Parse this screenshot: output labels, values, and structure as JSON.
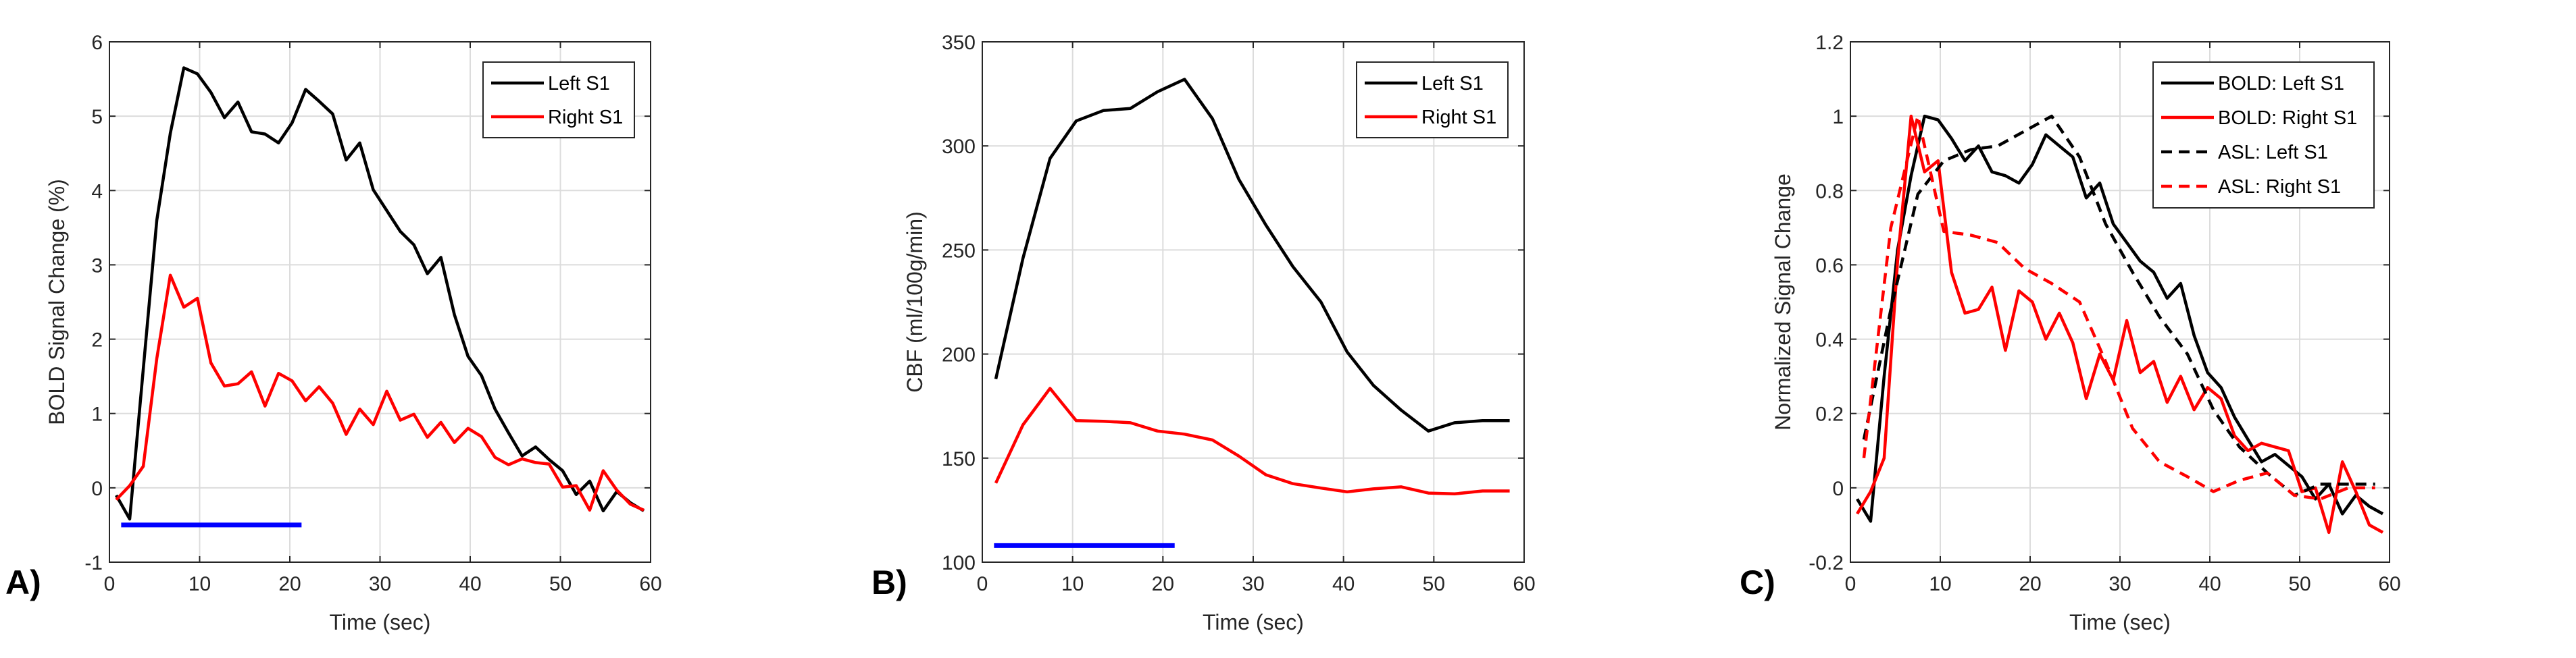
{
  "chart_data": [
    {
      "panel_label": "A)",
      "type": "line",
      "xlabel": "Time (sec)",
      "ylabel": "BOLD Signal Change (%)",
      "xlim": [
        0,
        60
      ],
      "ylim": [
        -1,
        6
      ],
      "xticks": [
        0,
        10,
        20,
        30,
        40,
        50,
        60
      ],
      "yticks": [
        -1,
        0,
        1,
        2,
        3,
        4,
        5,
        6
      ],
      "grid": true,
      "legend": "top-right",
      "x": [
        0.75,
        2.25,
        3.75,
        5.25,
        6.75,
        8.25,
        9.75,
        11.25,
        12.75,
        14.25,
        15.75,
        17.25,
        18.75,
        20.25,
        21.75,
        23.25,
        24.75,
        26.25,
        27.75,
        29.25,
        30.75,
        32.25,
        33.75,
        35.25,
        36.75,
        38.25,
        39.75,
        41.25,
        42.75,
        44.25,
        45.75,
        47.25,
        48.75,
        50.25,
        51.75,
        53.25,
        54.75,
        56.25,
        57.75,
        59.25
      ],
      "series": [
        {
          "name": "Left S1",
          "color": "#000000",
          "style": "solid",
          "values": [
            -0.1,
            -0.42,
            1.6,
            3.6,
            4.77,
            5.65,
            5.57,
            5.32,
            4.98,
            5.19,
            4.79,
            4.76,
            4.64,
            4.91,
            5.36,
            5.2,
            5.03,
            4.41,
            4.64,
            4.01,
            3.73,
            3.45,
            3.27,
            2.88,
            3.1,
            2.33,
            1.77,
            1.51,
            1.06,
            0.74,
            0.43,
            0.55,
            0.38,
            0.23,
            -0.09,
            0.09,
            -0.31,
            -0.05,
            -0.2,
            -0.31
          ]
        },
        {
          "name": "Right S1",
          "color": "#ff0000",
          "style": "solid",
          "values": [
            -0.16,
            0.03,
            0.29,
            1.74,
            2.86,
            2.43,
            2.55,
            1.68,
            1.37,
            1.4,
            1.56,
            1.1,
            1.54,
            1.44,
            1.17,
            1.36,
            1.14,
            0.72,
            1.06,
            0.85,
            1.3,
            0.91,
            0.99,
            0.68,
            0.88,
            0.61,
            0.8,
            0.69,
            0.41,
            0.31,
            0.39,
            0.34,
            0.32,
            0.01,
            0.03,
            -0.3,
            0.23,
            -0.03,
            -0.22,
            -0.3
          ]
        }
      ],
      "stimulus_bar": {
        "x_start": 1.3,
        "x_end": 21.3,
        "y": -0.5,
        "color": "#0000ff"
      }
    },
    {
      "panel_label": "B)",
      "type": "line",
      "xlabel": "Time (sec)",
      "ylabel": "CBF (ml/100g/min)",
      "xlim": [
        0,
        60
      ],
      "ylim": [
        100,
        350
      ],
      "xticks": [
        0,
        10,
        20,
        30,
        40,
        50,
        60
      ],
      "yticks": [
        100,
        150,
        200,
        250,
        300,
        350
      ],
      "grid": true,
      "legend": "top-right",
      "x": [
        1.5,
        4.5,
        7.5,
        10.4,
        13.4,
        16.4,
        19.4,
        22.4,
        25.5,
        28.4,
        31.4,
        34.4,
        37.5,
        40.4,
        43.3,
        46.4,
        49.4,
        52.3,
        55.4,
        58.4
      ],
      "series": [
        {
          "name": "Left S1",
          "color": "#000000",
          "style": "solid",
          "values": [
            188,
            246,
            294,
            312,
            317,
            318,
            326,
            332,
            313,
            284,
            262,
            242,
            225,
            201,
            185,
            173,
            163,
            167,
            168,
            168
          ]
        },
        {
          "name": "Right S1",
          "color": "#ff0000",
          "style": "solid",
          "values": [
            138,
            166,
            183.5,
            168,
            167.7,
            167,
            163,
            161.5,
            158.7,
            151,
            142,
            137.7,
            135.6,
            133.8,
            135.2,
            136.2,
            133.2,
            132.8,
            134.2,
            134.2
          ]
        }
      ],
      "stimulus_bar": {
        "x_start": 1.3,
        "x_end": 21.3,
        "y": 108,
        "color": "#0000ff"
      }
    },
    {
      "panel_label": "C)",
      "type": "line",
      "xlabel": "Time (sec)",
      "ylabel": "Normalized Signal Change",
      "xlim": [
        0,
        60
      ],
      "ylim": [
        -0.2,
        1.2
      ],
      "xticks": [
        0,
        10,
        20,
        30,
        40,
        50,
        60
      ],
      "yticks": [
        -0.2,
        0,
        0.2,
        0.4,
        0.6,
        0.8,
        1,
        1.2
      ],
      "grid": true,
      "legend": "top-right",
      "series": [
        {
          "name": "BOLD: Left S1",
          "color": "#000000",
          "style": "solid",
          "x": [
            0.75,
            2.25,
            3.75,
            5.25,
            6.75,
            8.25,
            9.75,
            11.25,
            12.75,
            14.25,
            15.75,
            17.25,
            18.75,
            20.25,
            21.75,
            23.25,
            24.75,
            26.25,
            27.75,
            29.25,
            30.75,
            32.25,
            33.75,
            35.25,
            36.75,
            38.25,
            39.75,
            41.25,
            42.75,
            44.25,
            45.75,
            47.25,
            48.75,
            50.25,
            51.75,
            53.25,
            54.75,
            56.25,
            57.75,
            59.25
          ],
          "values": [
            -0.03,
            -0.09,
            0.3,
            0.64,
            0.84,
            1,
            0.99,
            0.94,
            0.88,
            0.92,
            0.85,
            0.84,
            0.82,
            0.87,
            0.95,
            0.92,
            0.89,
            0.78,
            0.82,
            0.71,
            0.66,
            0.61,
            0.58,
            0.51,
            0.55,
            0.41,
            0.31,
            0.27,
            0.19,
            0.13,
            0.07,
            0.09,
            0.06,
            0.03,
            -0.03,
            0.01,
            -0.07,
            -0.02,
            -0.05,
            -0.07
          ]
        },
        {
          "name": "BOLD: Right S1",
          "color": "#ff0000",
          "style": "solid",
          "x": [
            0.75,
            2.25,
            3.75,
            5.25,
            6.75,
            8.25,
            9.75,
            11.25,
            12.75,
            14.25,
            15.75,
            17.25,
            18.75,
            20.25,
            21.75,
            23.25,
            24.75,
            26.25,
            27.75,
            29.25,
            30.75,
            32.25,
            33.75,
            35.25,
            36.75,
            38.25,
            39.75,
            41.25,
            42.75,
            44.25,
            45.75,
            47.25,
            48.75,
            50.25,
            51.75,
            53.25,
            54.75,
            56.25,
            57.75,
            59.25
          ],
          "values": [
            -0.07,
            -0.01,
            0.08,
            0.61,
            1,
            0.85,
            0.88,
            0.58,
            0.47,
            0.48,
            0.54,
            0.37,
            0.53,
            0.5,
            0.4,
            0.47,
            0.39,
            0.24,
            0.36,
            0.29,
            0.45,
            0.31,
            0.34,
            0.23,
            0.3,
            0.21,
            0.27,
            0.24,
            0.14,
            0.1,
            0.12,
            0.11,
            0.1,
            -0.01,
            0,
            -0.12,
            0.07,
            -0.01,
            -0.1,
            -0.12
          ]
        },
        {
          "name": "ASL: Left S1",
          "color": "#000000",
          "style": "dashed",
          "x": [
            1.5,
            4.5,
            7.5,
            10.4,
            13.4,
            16.4,
            19.4,
            22.4,
            25.5,
            28.4,
            31.4,
            34.4,
            37.5,
            40.4,
            43.3,
            46.4,
            49.4,
            52.3,
            55.4,
            58.4
          ],
          "values": [
            0.13,
            0.48,
            0.79,
            0.88,
            0.91,
            0.92,
            0.96,
            1,
            0.89,
            0.71,
            0.58,
            0.46,
            0.36,
            0.21,
            0.11,
            0.04,
            -0.02,
            0.01,
            0.01,
            0.01
          ]
        },
        {
          "name": "ASL: Right S1",
          "color": "#ff0000",
          "style": "dashed",
          "x": [
            1.5,
            4.5,
            7.5,
            10.4,
            13.4,
            16.4,
            19.4,
            22.4,
            25.5,
            28.4,
            31.4,
            34.4,
            37.5,
            40.4,
            43.3,
            46.4,
            49.4,
            52.3,
            55.4,
            58.4
          ],
          "values": [
            0.08,
            0.7,
            1,
            0.69,
            0.68,
            0.66,
            0.59,
            0.55,
            0.5,
            0.34,
            0.16,
            0.07,
            0.03,
            -0.01,
            0.02,
            0.04,
            -0.02,
            -0.03,
            0,
            0
          ]
        }
      ]
    }
  ]
}
